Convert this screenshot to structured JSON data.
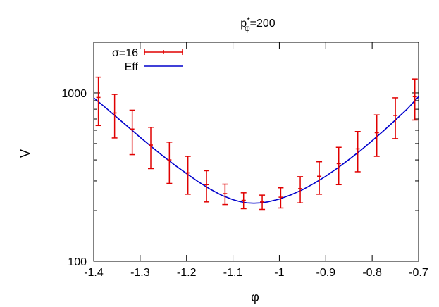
{
  "chart_data": {
    "type": "line",
    "title": "p*φ=200",
    "title_parts": {
      "base": "p",
      "sup": "*",
      "sub": "φ",
      "rest": "=200"
    },
    "xlabel": "φ",
    "ylabel": "V",
    "xlim": [
      -1.4,
      -0.7
    ],
    "ylim": [
      100,
      2000
    ],
    "y_scale": "log",
    "x_ticks": [
      -1.4,
      -1.3,
      -1.2,
      -1.1,
      -1.0,
      -0.9,
      -0.8,
      -0.7
    ],
    "x_tick_labels": [
      "-1.4",
      "-1.3",
      "-1.2",
      "-1.1",
      "-1",
      "-0.9",
      "-0.8",
      "-0.7"
    ],
    "y_ticks": [
      100,
      1000
    ],
    "y_tick_labels": [
      "100",
      "1000"
    ],
    "grid": false,
    "legend_position": "top-left",
    "series": [
      {
        "name": "σ=16",
        "style": "errorbars",
        "color": "#e00000",
        "x": [
          -1.39,
          -1.355,
          -1.317,
          -1.277,
          -1.237,
          -1.197,
          -1.157,
          -1.117,
          -1.077,
          -1.037,
          -0.997,
          -0.955,
          -0.914,
          -0.872,
          -0.831,
          -0.79,
          -0.75,
          -0.708
        ],
        "y": [
          940,
          760,
          610,
          490,
          400,
          335,
          285,
          252,
          230,
          225,
          240,
          270,
          320,
          380,
          465,
          580,
          735,
          950
        ],
        "yerr": [
          300,
          220,
          180,
          135,
          110,
          85,
          60,
          35,
          25,
          22,
          33,
          48,
          70,
          95,
          125,
          160,
          200,
          260
        ]
      },
      {
        "name": "Eff",
        "style": "line",
        "color": "#0000cc",
        "x": [
          -1.4,
          -1.375,
          -1.35,
          -1.325,
          -1.3,
          -1.275,
          -1.25,
          -1.225,
          -1.2,
          -1.175,
          -1.15,
          -1.125,
          -1.1,
          -1.085,
          -1.07,
          -1.055,
          -1.04,
          -1.025,
          -1.0,
          -0.975,
          -0.95,
          -0.925,
          -0.9,
          -0.875,
          -0.85,
          -0.825,
          -0.8,
          -0.775,
          -0.75,
          -0.725,
          -0.7
        ],
        "y": [
          935,
          820,
          715,
          625,
          545,
          478,
          420,
          372,
          332,
          297,
          269,
          247,
          232,
          226,
          222,
          221,
          222,
          225,
          234,
          248,
          266,
          290,
          320,
          357,
          402,
          455,
          520,
          597,
          690,
          800,
          950
        ]
      }
    ]
  }
}
